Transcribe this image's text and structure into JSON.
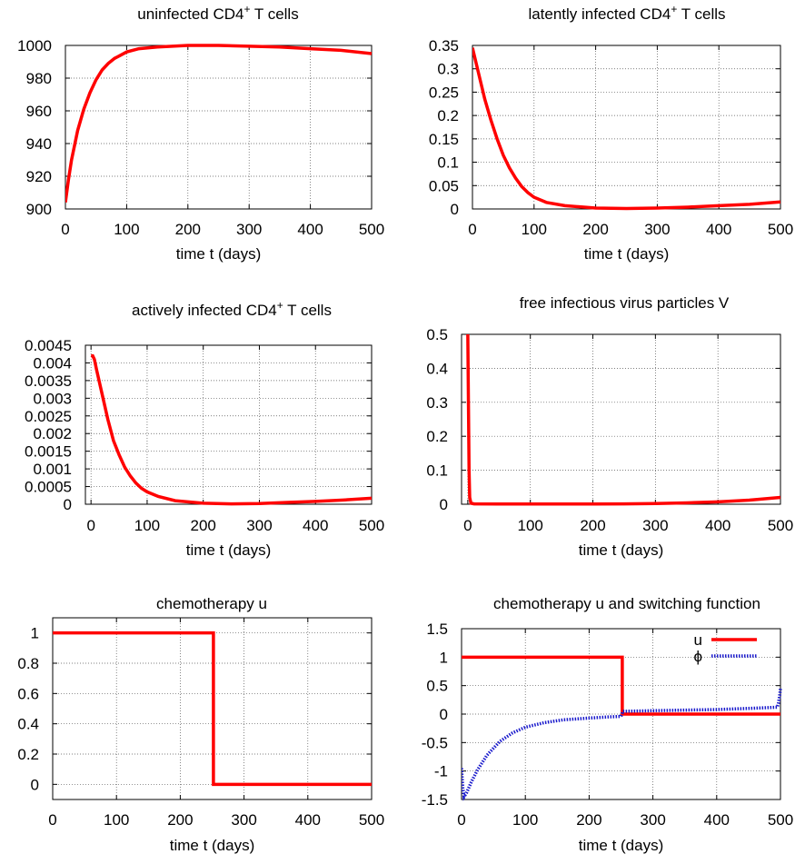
{
  "chart_data": [
    {
      "id": "p1",
      "type": "line",
      "title": "uninfected CD4",
      "title_sup": "+",
      "title_suffix": " T cells",
      "xlabel": "time  t  (days)",
      "ylabel": "",
      "xlim": [
        0,
        500
      ],
      "ylim": [
        900,
        1000
      ],
      "xticks": [
        "0",
        "100",
        "200",
        "300",
        "400",
        "500"
      ],
      "yticks": [
        "900",
        "920",
        "940",
        "960",
        "980",
        "1000"
      ],
      "grid": true,
      "series": [
        {
          "color": "#ff0000",
          "style": "solid",
          "x": [
            0,
            5,
            10,
            20,
            30,
            40,
            50,
            60,
            70,
            80,
            90,
            100,
            120,
            150,
            200,
            250,
            300,
            350,
            400,
            450,
            500
          ],
          "y": [
            904,
            918,
            930,
            948,
            961,
            971,
            979,
            985,
            989,
            992,
            994,
            996,
            998,
            999,
            1000,
            1000,
            999.5,
            999,
            998,
            997,
            995
          ]
        }
      ]
    },
    {
      "id": "p2",
      "type": "line",
      "title": "latently infected CD4",
      "title_sup": "+",
      "title_suffix": " T cells",
      "xlabel": "time  t  (days)",
      "ylabel": "",
      "xlim": [
        0,
        500
      ],
      "ylim": [
        0,
        0.35
      ],
      "xticks": [
        "0",
        "100",
        "200",
        "300",
        "400",
        "500"
      ],
      "yticks": [
        "0",
        "0.05",
        "0.1",
        "0.15",
        "0.2",
        "0.25",
        "0.3",
        "0.35"
      ],
      "grid": true,
      "series": [
        {
          "color": "#ff0000",
          "style": "solid",
          "x": [
            0,
            10,
            20,
            30,
            40,
            50,
            60,
            70,
            80,
            90,
            100,
            120,
            150,
            200,
            250,
            300,
            350,
            400,
            450,
            500
          ],
          "y": [
            0.345,
            0.29,
            0.235,
            0.19,
            0.15,
            0.115,
            0.088,
            0.066,
            0.048,
            0.035,
            0.025,
            0.014,
            0.007,
            0.002,
            0.001,
            0.002,
            0.004,
            0.007,
            0.01,
            0.015
          ]
        }
      ]
    },
    {
      "id": "p3",
      "type": "line",
      "title": "actively infected CD4",
      "title_sup": "+",
      "title_suffix": " T cells",
      "xlabel": "time  t  (days)",
      "ylabel": "",
      "xlim": [
        -10,
        500
      ],
      "ylim": [
        0,
        0.0045
      ],
      "xticks": [
        "0",
        "100",
        "200",
        "300",
        "400",
        "500"
      ],
      "yticks": [
        "0",
        "0.0005",
        "0.001",
        "0.0015",
        "0.002",
        "0.0025",
        "0.003",
        "0.0035",
        "0.004",
        "0.0045"
      ],
      "grid": true,
      "series": [
        {
          "color": "#ff0000",
          "style": "solid",
          "x": [
            0,
            3,
            6,
            10,
            20,
            30,
            40,
            50,
            60,
            70,
            80,
            90,
            100,
            120,
            150,
            200,
            250,
            300,
            350,
            400,
            450,
            500
          ],
          "y": [
            0.0042,
            0.0042,
            0.0041,
            0.0038,
            0.0031,
            0.0024,
            0.0018,
            0.0014,
            0.00105,
            0.0008,
            0.0006,
            0.00045,
            0.00035,
            0.00022,
            0.0001,
            3e-05,
            1e-05,
            2e-05,
            5e-05,
            8e-05,
            0.00012,
            0.00017
          ]
        }
      ]
    },
    {
      "id": "p4",
      "type": "line",
      "title": "free infectious virus particles  V",
      "title_sup": "",
      "title_suffix": "",
      "xlabel": "time  t  (days)",
      "ylabel": "",
      "xlim": [
        -10,
        500
      ],
      "ylim": [
        0,
        0.5
      ],
      "xticks": [
        "0",
        "100",
        "200",
        "300",
        "400",
        "500"
      ],
      "yticks": [
        "0",
        "0.1",
        "0.2",
        "0.3",
        "0.4",
        "0.5"
      ],
      "grid": true,
      "series": [
        {
          "color": "#ff0000",
          "style": "solid",
          "x": [
            0,
            1,
            2,
            3,
            5,
            10,
            50,
            100,
            150,
            200,
            250,
            300,
            350,
            400,
            450,
            500
          ],
          "y": [
            0.5,
            0.3,
            0.1,
            0.02,
            0.003,
            0.001,
            0.0005,
            0.0005,
            0.0005,
            0.0006,
            0.001,
            0.002,
            0.004,
            0.007,
            0.012,
            0.02
          ]
        }
      ]
    },
    {
      "id": "p5",
      "type": "line",
      "title": "chemotherapy  u",
      "title_sup": "",
      "title_suffix": "",
      "xlabel": "time  t  (days)",
      "ylabel": "",
      "xlim": [
        0,
        500
      ],
      "ylim": [
        -0.1,
        1.1
      ],
      "xticks": [
        "0",
        "100",
        "200",
        "300",
        "400",
        "500"
      ],
      "yticks": [
        "0",
        "0.2",
        "0.4",
        "0.6",
        "0.8",
        "1"
      ],
      "grid": true,
      "series": [
        {
          "color": "#ff0000",
          "style": "solid",
          "x": [
            0,
            252,
            252,
            500
          ],
          "y": [
            1,
            1,
            0,
            0
          ]
        }
      ]
    },
    {
      "id": "p6",
      "type": "line",
      "title": "chemotherapy  u  and switching function",
      "title_sup": "",
      "title_suffix": "",
      "xlabel": "time  t  (days)",
      "ylabel": "",
      "xlim": [
        0,
        500
      ],
      "ylim": [
        -1.5,
        1.5
      ],
      "xticks": [
        "0",
        "100",
        "200",
        "300",
        "400",
        "500"
      ],
      "yticks": [
        "-1.5",
        "-1",
        "-0.5",
        "0",
        "0.5",
        "1",
        "1.5"
      ],
      "grid": true,
      "legend_position": "top-right",
      "series": [
        {
          "name": "u",
          "color": "#ff0000",
          "style": "solid",
          "x": [
            0,
            252,
            252,
            500
          ],
          "y": [
            1,
            1,
            0,
            0
          ]
        },
        {
          "name": "ϕ",
          "color": "#1a1acc",
          "style": "dotted",
          "x": [
            0,
            2,
            4,
            8,
            15,
            25,
            40,
            60,
            80,
            100,
            130,
            160,
            200,
            230,
            250,
            253,
            260,
            300,
            350,
            400,
            450,
            495,
            497,
            499,
            500
          ],
          "y": [
            -0.95,
            -1.3,
            -1.45,
            -1.38,
            -1.2,
            -0.98,
            -0.72,
            -0.48,
            -0.33,
            -0.23,
            -0.15,
            -0.1,
            -0.07,
            -0.05,
            -0.04,
            0.05,
            0.05,
            0.06,
            0.07,
            0.08,
            0.1,
            0.12,
            0.2,
            0.35,
            0.45
          ]
        }
      ]
    }
  ]
}
